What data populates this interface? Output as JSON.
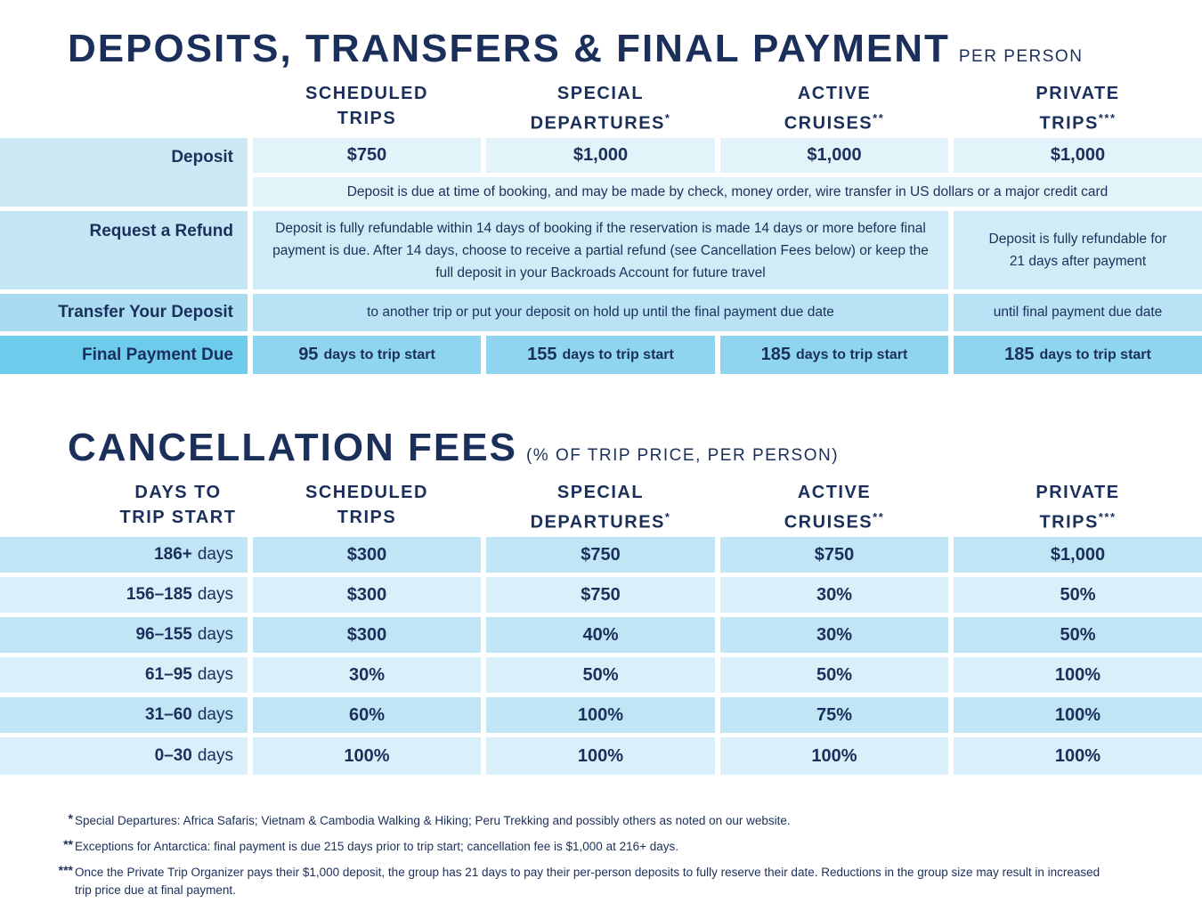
{
  "deposits": {
    "title": "DEPOSITS, TRANSFERS & FINAL PAYMENT",
    "subtitle": "PER PERSON",
    "columns": [
      {
        "line1": "SCHEDULED",
        "line2": "TRIPS"
      },
      {
        "line1": "SPECIAL",
        "line2": "DEPARTURES",
        "mark": "*"
      },
      {
        "line1": "ACTIVE",
        "line2": "CRUISES",
        "mark": "**"
      },
      {
        "line1": "PRIVATE",
        "line2": "TRIPS",
        "mark": "***"
      }
    ],
    "deposit": {
      "label": "Deposit",
      "values": [
        "$750",
        "$1,000",
        "$1,000",
        "$1,000"
      ],
      "note": "Deposit is due at time of booking, and may be made by check, money order, wire transfer in US dollars or a major credit card"
    },
    "refund": {
      "label": "Request a Refund",
      "text": "Deposit is fully refundable within 14 days of booking if the reservation is made 14 days or more before final payment is due. After 14 days, choose to receive a partial refund (see Cancellation Fees below) or keep the full deposit in your Backroads Account for future travel",
      "private": "Deposit is fully refundable for 21 days after payment"
    },
    "transfer": {
      "label": "Transfer Your Deposit",
      "text": "to another trip or put your deposit on hold up until the final payment due date",
      "private": "until final payment due date"
    },
    "final_payment": {
      "label": "Final Payment Due",
      "values": [
        {
          "number": "95",
          "unit": "days to trip start"
        },
        {
          "number": "155",
          "unit": "days to trip start"
        },
        {
          "number": "185",
          "unit": "days to trip start"
        },
        {
          "number": "185",
          "unit": "days to trip start"
        }
      ]
    }
  },
  "cancellation": {
    "title": "CANCELLATION FEES",
    "subtitle": "(% OF TRIP PRICE, PER PERSON)",
    "header": {
      "line1": "DAYS TO",
      "line2": "TRIP START"
    },
    "columns": [
      {
        "line1": "SCHEDULED",
        "line2": "TRIPS"
      },
      {
        "line1": "SPECIAL",
        "line2": "DEPARTURES",
        "mark": "*"
      },
      {
        "line1": "ACTIVE",
        "line2": "CRUISES",
        "mark": "**"
      },
      {
        "line1": "PRIVATE",
        "line2": "TRIPS",
        "mark": "***"
      }
    ],
    "rows": [
      {
        "range": "186+",
        "unit": "days",
        "values": [
          "$300",
          "$750",
          "$750",
          "$1,000"
        ]
      },
      {
        "range": "156–185",
        "unit": "days",
        "values": [
          "$300",
          "$750",
          "30%",
          "50%"
        ]
      },
      {
        "range": "96–155",
        "unit": "days",
        "values": [
          "$300",
          "40%",
          "30%",
          "50%"
        ]
      },
      {
        "range": "61–95",
        "unit": "days",
        "values": [
          "30%",
          "50%",
          "50%",
          "100%"
        ]
      },
      {
        "range": "31–60",
        "unit": "days",
        "values": [
          "60%",
          "100%",
          "75%",
          "100%"
        ]
      },
      {
        "range": "0–30",
        "unit": "days",
        "values": [
          "100%",
          "100%",
          "100%",
          "100%"
        ]
      }
    ]
  },
  "footnotes": [
    {
      "mark": "*",
      "text": "Special Departures: Africa Safaris; Vietnam & Cambodia Walking & Hiking; Peru Trekking and possibly others as noted on our website."
    },
    {
      "mark": "**",
      "text": "Exceptions for Antarctica: final payment is due 215 days prior to trip start; cancellation fee is $1,000 at 216+ days."
    },
    {
      "mark": "***",
      "text": "Once the Private Trip Organizer pays their $1,000 deposit, the group has 21 days to pay their per-person deposits to fully reserve their date. Reductions in the group size may result in increased trip price due at final payment."
    }
  ]
}
